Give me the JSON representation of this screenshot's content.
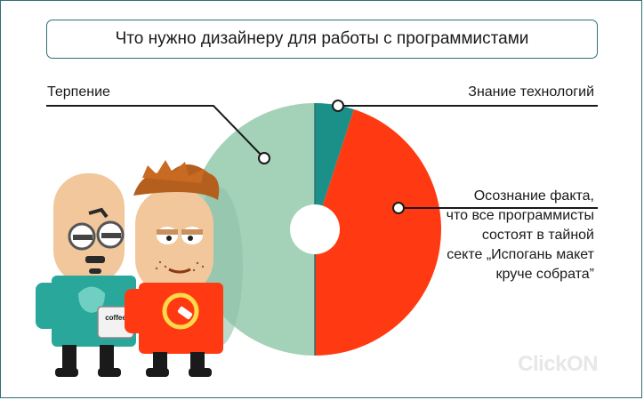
{
  "title": "Что нужно дизайнеру для работы с программистами",
  "logo": "ClickON",
  "chart_data": {
    "type": "pie",
    "title": "Что нужно дизайнеру для работы с программистами",
    "slices": [
      {
        "label": "Знание  технологий",
        "value": 5,
        "color": "#1a9089"
      },
      {
        "label": "Осознание факта,\nчто все программисты\nсостоят  в тайной\nсекте „Испогань макет\nкруче собрата”",
        "value": 45,
        "color": "#ff3a12"
      },
      {
        "label": "Терпение",
        "value": 50,
        "color": "#a4d2b8"
      }
    ],
    "donut_hole": true,
    "legend": "callout-lines"
  },
  "illustration": {
    "mug_text": "coffee",
    "colors": {
      "shirt_left": "#2aa79b",
      "shirt_right": "#ff3a12",
      "skin": "#f2c79c"
    }
  }
}
